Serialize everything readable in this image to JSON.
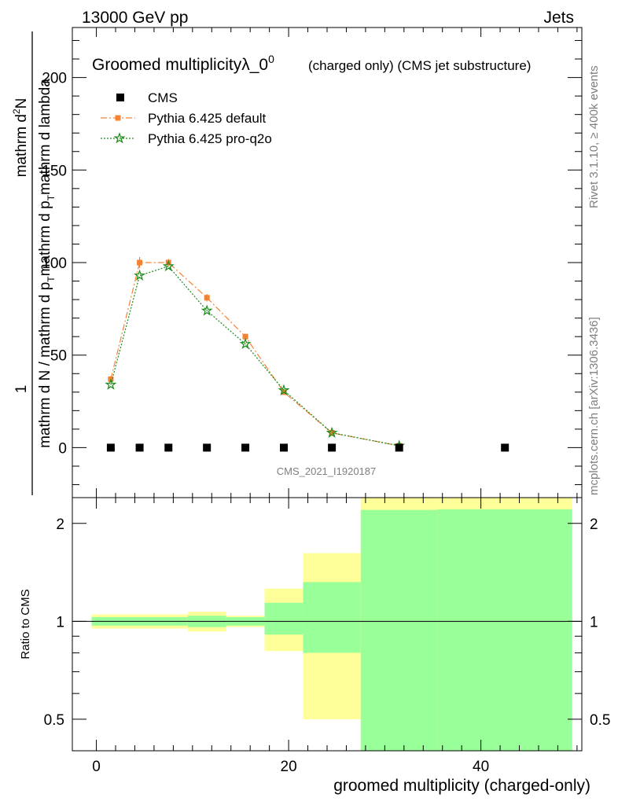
{
  "header": {
    "left": "13000 GeV pp",
    "right": "Jets"
  },
  "side_labels": {
    "top": "Rivet 3.1.10, ≥ 400k events",
    "bottom": "mcplots.cern.ch [arXiv:1306.3436]"
  },
  "chart_data": [
    {
      "type": "scatter",
      "title_main": "Groomed multiplicityλ_0",
      "title_sup": "0",
      "title_note": "(charged only) (CMS jet substructure)",
      "watermark": "CMS_2021_I1920187",
      "ylabel_numerator": "1",
      "ylabel_main": "mathrm d N / mathrm d p",
      "ylabel_main_sub": "T",
      "ylabel_main_rest": "mathrm d p",
      "ylabel_main_sub2": "T",
      "ylabel_main_tail": "mathrm d lambda",
      "ylabel_top": "mathrm d",
      "ylabel_top_sup": "2",
      "ylabel_top_rest": "N",
      "xlim": [
        -2.5,
        50.5
      ],
      "ylim": [
        -27,
        227
      ],
      "yticks": [
        0,
        50,
        100,
        150,
        200
      ],
      "ytick_labels": [
        "0",
        "50",
        "100",
        "150",
        "200"
      ],
      "legend": [
        {
          "name": "CMS",
          "color": "#000000",
          "marker": "square"
        },
        {
          "name": "Pythia 6.425 default",
          "color": "#f58232",
          "marker": "square-dashdot"
        },
        {
          "name": "Pythia 6.425 pro-q2o",
          "color": "#1a8a1a",
          "marker": "star-dotted"
        }
      ],
      "series": [
        {
          "name": "CMS",
          "x": [
            1.5,
            4.5,
            7.5,
            11.5,
            15.5,
            19.5,
            24.5,
            31.5,
            42.5
          ],
          "y": [
            0,
            0,
            0,
            0,
            0,
            0,
            0,
            0,
            0
          ]
        },
        {
          "name": "Pythia 6.425 default",
          "x": [
            1.5,
            4.5,
            7.5,
            11.5,
            15.5,
            19.5,
            24.5,
            31.5
          ],
          "y": [
            37,
            100,
            100,
            81,
            60,
            30,
            8,
            1
          ],
          "err": [
            1.5,
            3,
            2,
            2,
            1.5,
            1,
            0.5,
            0.2
          ]
        },
        {
          "name": "Pythia 6.425 pro-q2o",
          "x": [
            1.5,
            4.5,
            7.5,
            11.5,
            15.5,
            19.5,
            24.5,
            31.5
          ],
          "y": [
            34,
            93,
            98,
            74,
            56,
            31,
            8,
            1
          ]
        }
      ]
    },
    {
      "type": "area",
      "ylabel": "Ratio to CMS",
      "xlabel": "groomed multiplicity (charged-only)",
      "log_scale": true,
      "ylim": [
        0.4,
        2.4
      ],
      "yticks": [
        0.5,
        1,
        2
      ],
      "ytick_labels": [
        "0.5",
        "1",
        "2"
      ],
      "xticks": [
        0,
        20,
        40
      ],
      "xtick_labels": [
        "0",
        "20",
        "40"
      ],
      "bins": [
        {
          "x0": -0.5,
          "x1": 9.5,
          "yellow": [
            0.95,
            1.05
          ],
          "green": [
            0.97,
            1.03
          ]
        },
        {
          "x0": 9.5,
          "x1": 13.5,
          "yellow": [
            0.93,
            1.07
          ],
          "green": [
            0.96,
            1.04
          ]
        },
        {
          "x0": 13.5,
          "x1": 17.5,
          "yellow": [
            0.96,
            1.04
          ],
          "green": [
            0.97,
            1.03
          ]
        },
        {
          "x0": 17.5,
          "x1": 21.5,
          "yellow": [
            0.81,
            1.26
          ],
          "green": [
            0.91,
            1.14
          ]
        },
        {
          "x0": 21.5,
          "x1": 27.5,
          "yellow": [
            0.5,
            1.62
          ],
          "green": [
            0.8,
            1.32
          ]
        },
        {
          "x0": 27.5,
          "x1": 35.5,
          "yellow": [
            0.4,
            2.4
          ],
          "green": [
            0.4,
            2.2
          ]
        },
        {
          "x0": 35.5,
          "x1": 49.5,
          "yellow": [
            0.4,
            2.4
          ],
          "green": [
            0.4,
            2.21
          ]
        }
      ]
    }
  ]
}
